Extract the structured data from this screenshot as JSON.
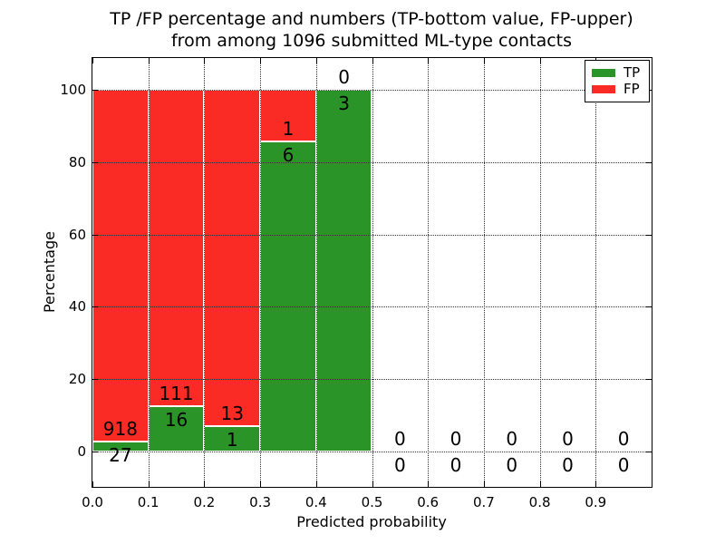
{
  "title": {
    "line1": "TP /FP percentage and numbers (TP-bottom value, FP-upper)",
    "line2": "from among 1096 submitted ML-type contacts"
  },
  "colors": {
    "tp": "#2b9428",
    "fp": "#fa2b25",
    "grid": "#2f2f2f",
    "spine": "#000000",
    "text": "#000000",
    "background": "#ffffff"
  },
  "chart_data": {
    "type": "bar",
    "stacking": "percentage",
    "title": "TP /FP percentage and numbers (TP-bottom value, FP-upper) from among 1096 submitted ML-type contacts",
    "xlabel": "Predicted probability",
    "ylabel": "Percentage",
    "xlim": [
      0.0,
      1.0
    ],
    "ylim": [
      -10,
      110
    ],
    "grid": "dotted",
    "legend_position": "upper-right",
    "total_submitted": 1096,
    "xticks": [
      "0.0",
      "0.1",
      "0.2",
      "0.3",
      "0.4",
      "0.5",
      "0.6",
      "0.7",
      "0.8",
      "0.9"
    ],
    "xtick_values": [
      0.0,
      0.1,
      0.2,
      0.3,
      0.4,
      0.5,
      0.6,
      0.7,
      0.8,
      0.9
    ],
    "yticks": [
      0,
      20,
      40,
      60,
      80,
      100
    ],
    "series": [
      {
        "name": "TP",
        "color": "#2b9428"
      },
      {
        "name": "FP",
        "color": "#fa2b25"
      }
    ],
    "bins": [
      {
        "range": [
          0.0,
          0.1
        ],
        "tp_count": 27,
        "fp_count": 918,
        "tp_pct": 2.86,
        "fp_pct": 97.14
      },
      {
        "range": [
          0.1,
          0.2
        ],
        "tp_count": 16,
        "fp_count": 111,
        "tp_pct": 12.6,
        "fp_pct": 87.4
      },
      {
        "range": [
          0.2,
          0.3
        ],
        "tp_count": 1,
        "fp_count": 13,
        "tp_pct": 7.14,
        "fp_pct": 92.86
      },
      {
        "range": [
          0.3,
          0.4
        ],
        "tp_count": 6,
        "fp_count": 1,
        "tp_pct": 85.71,
        "fp_pct": 14.29
      },
      {
        "range": [
          0.4,
          0.5
        ],
        "tp_count": 3,
        "fp_count": 0,
        "tp_pct": 100,
        "fp_pct": 0
      },
      {
        "range": [
          0.5,
          0.6
        ],
        "tp_count": 0,
        "fp_count": 0,
        "tp_pct": null,
        "fp_pct": null
      },
      {
        "range": [
          0.6,
          0.7
        ],
        "tp_count": 0,
        "fp_count": 0,
        "tp_pct": null,
        "fp_pct": null
      },
      {
        "range": [
          0.7,
          0.8
        ],
        "tp_count": 0,
        "fp_count": 0,
        "tp_pct": null,
        "fp_pct": null
      },
      {
        "range": [
          0.8,
          0.9
        ],
        "tp_count": 0,
        "fp_count": 0,
        "tp_pct": null,
        "fp_pct": null
      },
      {
        "range": [
          0.9,
          1.0
        ],
        "tp_count": 0,
        "fp_count": 0,
        "tp_pct": null,
        "fp_pct": null
      }
    ]
  }
}
